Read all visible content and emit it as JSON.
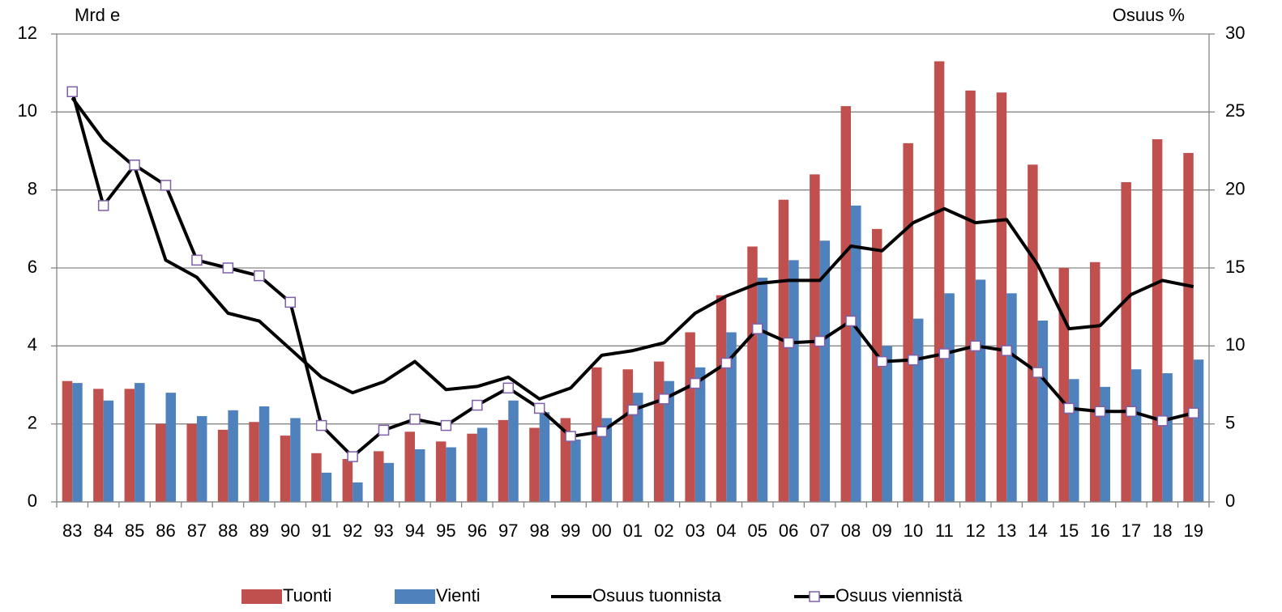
{
  "chart_data": {
    "type": "bar",
    "y_label": "Mrd e",
    "y2_label": "Osuus %",
    "categories": [
      "83",
      "84",
      "85",
      "86",
      "87",
      "88",
      "89",
      "90",
      "91",
      "92",
      "93",
      "94",
      "95",
      "96",
      "97",
      "98",
      "99",
      "00",
      "01",
      "02",
      "03",
      "04",
      "05",
      "06",
      "07",
      "08",
      "09",
      "10",
      "11",
      "12",
      "13",
      "14",
      "15",
      "16",
      "17",
      "18",
      "19"
    ],
    "series": [
      {
        "name": "Tuonti",
        "type": "bar",
        "color": "#c0504d",
        "values": [
          3.1,
          2.9,
          2.9,
          2.0,
          2.0,
          1.85,
          2.05,
          1.7,
          1.25,
          1.1,
          1.3,
          1.8,
          1.55,
          1.75,
          2.1,
          1.9,
          2.15,
          3.45,
          3.4,
          3.6,
          4.35,
          5.3,
          6.55,
          7.75,
          8.4,
          10.15,
          7.0,
          9.2,
          11.3,
          10.55,
          10.5,
          8.65,
          6.0,
          6.15,
          8.2,
          9.3,
          8.95
        ]
      },
      {
        "name": "Vienti",
        "type": "bar",
        "color": "#4f81bd",
        "values": [
          3.05,
          2.6,
          3.05,
          2.8,
          2.2,
          2.35,
          2.45,
          2.15,
          0.75,
          0.5,
          1.0,
          1.35,
          1.4,
          1.9,
          2.6,
          2.3,
          1.6,
          2.15,
          2.8,
          3.1,
          3.45,
          4.35,
          5.75,
          6.2,
          6.7,
          7.6,
          4.0,
          4.7,
          5.35,
          5.7,
          5.35,
          4.65,
          3.15,
          2.95,
          3.4,
          3.3,
          3.65
        ]
      },
      {
        "name": "Osuus tuonnista",
        "type": "line",
        "axis": "y2",
        "color": "#000000",
        "values": [
          25.9,
          23.2,
          21.5,
          15.5,
          14.4,
          12.1,
          11.6,
          9.8,
          8.0,
          7.0,
          7.7,
          9.0,
          7.2,
          7.4,
          8.0,
          6.6,
          7.3,
          9.4,
          9.7,
          10.2,
          12.1,
          13.2,
          14.0,
          14.2,
          14.2,
          16.4,
          16.1,
          17.9,
          18.8,
          17.9,
          18.1,
          15.2,
          11.1,
          11.3,
          13.3,
          14.2,
          13.8
        ]
      },
      {
        "name": "Osuus viennistä",
        "type": "line",
        "axis": "y2",
        "color": "#000000",
        "marker": "square",
        "marker_color": "#7f5fa8",
        "values": [
          26.3,
          19.0,
          21.6,
          20.3,
          15.5,
          15.0,
          14.5,
          12.8,
          4.9,
          2.9,
          4.6,
          5.3,
          4.9,
          6.2,
          7.3,
          6.0,
          4.2,
          4.5,
          5.9,
          6.6,
          7.6,
          8.9,
          11.1,
          10.2,
          10.3,
          11.6,
          9.0,
          9.1,
          9.5,
          10.0,
          9.7,
          8.3,
          6.0,
          5.8,
          5.8,
          5.2,
          5.7
        ]
      }
    ],
    "ylim": [
      0,
      12
    ],
    "yticks": [
      0,
      2,
      4,
      6,
      8,
      10,
      12
    ],
    "y2lim": [
      0,
      30
    ],
    "y2ticks": [
      0,
      5,
      10,
      15,
      20,
      25,
      30
    ],
    "grid": true,
    "legend": "bottom"
  }
}
